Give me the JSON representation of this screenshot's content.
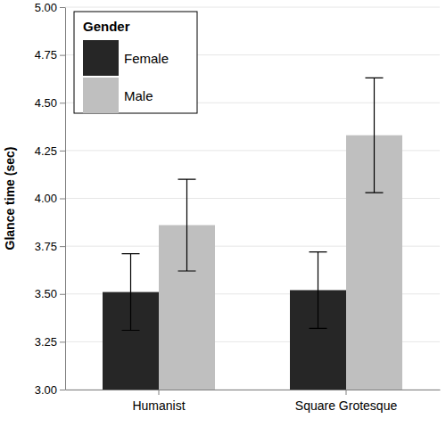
{
  "chart_data": {
    "type": "bar",
    "y_label": "Glance time (sec)",
    "legend_title": "Gender",
    "categories": [
      "Humanist",
      "Square Grotesque"
    ],
    "series": [
      {
        "name": "Female",
        "color": "#262626",
        "values": [
          3.51,
          3.52
        ],
        "errors": [
          0.2,
          0.2
        ]
      },
      {
        "name": "Male",
        "color": "#bfbfbf",
        "values": [
          3.86,
          4.33
        ],
        "errors": [
          0.24,
          0.3
        ]
      }
    ],
    "ylim": [
      3,
      5
    ],
    "yticks": [
      {
        "value": 3,
        "label": "3.00"
      },
      {
        "value": 3.25,
        "label": "3.25"
      },
      {
        "value": 3.5,
        "label": "3.50"
      },
      {
        "value": 3.75,
        "label": "3.75"
      },
      {
        "value": 4,
        "label": "4.00"
      },
      {
        "value": 4.25,
        "label": "4.25"
      },
      {
        "value": 4.5,
        "label": "4.50"
      },
      {
        "value": 4.75,
        "label": "4.75"
      },
      {
        "value": 5,
        "label": "5.00"
      }
    ],
    "grid": true,
    "legend": "top-left"
  }
}
